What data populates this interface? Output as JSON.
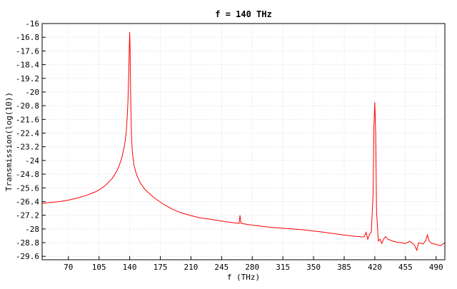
{
  "chart_data": {
    "type": "line",
    "title": "f = 140 THz",
    "xlabel": "f (THz)",
    "ylabel": "Transmission(log(10))",
    "xlim": [
      40,
      500
    ],
    "ylim": [
      -29.8,
      -16
    ],
    "grid": true,
    "x_ticks": [
      70,
      105,
      140,
      175,
      210,
      245,
      280,
      315,
      350,
      385,
      420,
      455,
      490
    ],
    "y_ticks": [
      -16,
      -16.8,
      -17.6,
      -18.4,
      -19.2,
      -20,
      -20.8,
      -21.6,
      -22.4,
      -23.2,
      -24,
      -24.8,
      -25.6,
      -26.4,
      -27.2,
      -28,
      -28.8,
      -29.6
    ],
    "line_color": "#ff0000",
    "series": [
      {
        "x": [
          40,
          50,
          60,
          70,
          80,
          90,
          100,
          105,
          110,
          115,
          120,
          125,
          128,
          131,
          134,
          136,
          137,
          138,
          139,
          139.5,
          140,
          140.5,
          141,
          142,
          143,
          145,
          148,
          152,
          156,
          160,
          165,
          170,
          180,
          190,
          200,
          210,
          220,
          225,
          230,
          240,
          250,
          260,
          265,
          266,
          267,
          270,
          280,
          290,
          300,
          310,
          320,
          330,
          340,
          350,
          360,
          370,
          380,
          385,
          390,
          395,
          400,
          405,
          408,
          410,
          412,
          414,
          416,
          418,
          419,
          420,
          421,
          422,
          424,
          426,
          428,
          430,
          432,
          435,
          440,
          445,
          450,
          455,
          460,
          465,
          468,
          470,
          475,
          478,
          480,
          482,
          485,
          490,
          495,
          500
        ],
        "y": [
          -26.5,
          -26.45,
          -26.4,
          -26.32,
          -26.2,
          -26.05,
          -25.85,
          -25.72,
          -25.55,
          -25.32,
          -25.05,
          -24.65,
          -24.3,
          -23.85,
          -23.15,
          -22.4,
          -21.6,
          -20.6,
          -18.7,
          -17.5,
          -16.5,
          -17.5,
          -19.8,
          -22.5,
          -23.5,
          -24.3,
          -24.85,
          -25.3,
          -25.6,
          -25.82,
          -26.05,
          -26.25,
          -26.6,
          -26.88,
          -27.08,
          -27.22,
          -27.35,
          -27.38,
          -27.42,
          -27.5,
          -27.58,
          -27.65,
          -27.68,
          -27.2,
          -27.66,
          -27.7,
          -27.78,
          -27.84,
          -27.9,
          -27.94,
          -27.98,
          -28.02,
          -28.06,
          -28.12,
          -28.18,
          -28.25,
          -28.32,
          -28.36,
          -28.38,
          -28.42,
          -28.44,
          -28.47,
          -28.45,
          -28.2,
          -28.6,
          -28.3,
          -28.2,
          -26.0,
          -22.0,
          -20.6,
          -22.5,
          -27.0,
          -28.7,
          -28.6,
          -28.85,
          -28.6,
          -28.45,
          -28.6,
          -28.7,
          -28.78,
          -28.8,
          -28.85,
          -28.72,
          -28.92,
          -29.25,
          -28.8,
          -28.88,
          -28.7,
          -28.35,
          -28.7,
          -28.85,
          -28.9,
          -28.98,
          -28.8
        ]
      }
    ]
  }
}
